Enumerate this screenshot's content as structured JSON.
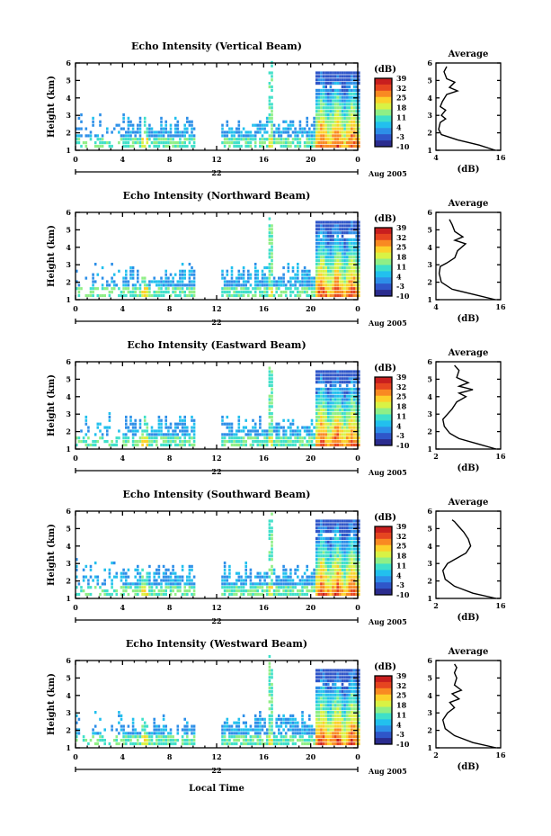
{
  "chart_data": [
    {
      "type": "heatmap",
      "title": "Echo Intensity (Vertical Beam)",
      "ylabel": "Height (km)",
      "y_ticks": [
        "1",
        "2",
        "3",
        "4",
        "5",
        "6"
      ],
      "x_ticks": [
        "0",
        "4",
        "8",
        "12",
        "16",
        "20",
        "0"
      ],
      "date_label": "22",
      "month_label": "Aug 2005",
      "colorbar_unit": "(dB)",
      "colorbar_ticks": [
        "39",
        "32",
        "25",
        "18",
        "11",
        "4",
        "-3",
        "-10"
      ],
      "avg": {
        "title": "Average",
        "xlabel": "(dB)",
        "x_ticks": [
          "4",
          "16"
        ],
        "y_ticks": [
          "1",
          "2",
          "3",
          "4",
          "5",
          "6"
        ],
        "xlim": [
          4,
          16
        ],
        "profile": [
          [
            15,
            1.0
          ],
          [
            12,
            1.3
          ],
          [
            8,
            1.6
          ],
          [
            5,
            1.9
          ],
          [
            4.5,
            2.2
          ],
          [
            4.8,
            2.6
          ],
          [
            5.8,
            2.8
          ],
          [
            5.0,
            3.0
          ],
          [
            5.8,
            3.3
          ],
          [
            4.8,
            3.5
          ],
          [
            5.2,
            3.8
          ],
          [
            6.0,
            4.2
          ],
          [
            8.0,
            4.4
          ],
          [
            6.5,
            4.6
          ],
          [
            7.5,
            4.9
          ],
          [
            6.0,
            5.1
          ],
          [
            5.5,
            5.5
          ],
          [
            6.0,
            5.8
          ]
        ]
      }
    },
    {
      "type": "heatmap",
      "title": "Echo Intensity (Northward Beam)",
      "ylabel": "Height (km)",
      "y_ticks": [
        "1",
        "2",
        "3",
        "4",
        "5",
        "6"
      ],
      "x_ticks": [
        "0",
        "4",
        "8",
        "12",
        "16",
        "20",
        "0"
      ],
      "date_label": "22",
      "month_label": "Aug 2005",
      "colorbar_unit": "(dB)",
      "colorbar_ticks": [
        "39",
        "32",
        "25",
        "18",
        "11",
        "4",
        "-3",
        "-10"
      ],
      "avg": {
        "title": "Average",
        "xlabel": "(dB)",
        "x_ticks": [
          "4",
          "16"
        ],
        "y_ticks": [
          "1",
          "2",
          "3",
          "4",
          "5",
          "6"
        ],
        "xlim": [
          4,
          16
        ],
        "profile": [
          [
            15,
            1.0
          ],
          [
            11,
            1.3
          ],
          [
            7,
            1.6
          ],
          [
            5,
            2.0
          ],
          [
            4.6,
            2.5
          ],
          [
            4.8,
            2.9
          ],
          [
            6.0,
            3.1
          ],
          [
            7.5,
            3.4
          ],
          [
            8.0,
            3.8
          ],
          [
            9.5,
            4.2
          ],
          [
            7.5,
            4.4
          ],
          [
            9.0,
            4.6
          ],
          [
            7.5,
            4.9
          ],
          [
            7.0,
            5.3
          ],
          [
            6.5,
            5.6
          ]
        ]
      }
    },
    {
      "type": "heatmap",
      "title": "Echo Intensity (Eastward Beam)",
      "ylabel": "Height (km)",
      "y_ticks": [
        "1",
        "2",
        "3",
        "4",
        "5",
        "6"
      ],
      "x_ticks": [
        "0",
        "4",
        "8",
        "12",
        "16",
        "20",
        "0"
      ],
      "date_label": "22",
      "month_label": "Aug 2005",
      "colorbar_unit": "(dB)",
      "colorbar_ticks": [
        "39",
        "32",
        "25",
        "18",
        "11",
        "4",
        "-3",
        "-10"
      ],
      "avg": {
        "title": "Average",
        "xlabel": "(dB)",
        "x_ticks": [
          "2",
          "16"
        ],
        "y_ticks": [
          "1",
          "2",
          "3",
          "4",
          "5",
          "6"
        ],
        "xlim": [
          2,
          16
        ],
        "profile": [
          [
            15,
            1.0
          ],
          [
            11,
            1.3
          ],
          [
            7,
            1.6
          ],
          [
            5,
            1.9
          ],
          [
            3.8,
            2.3
          ],
          [
            3.5,
            2.7
          ],
          [
            4.5,
            3.0
          ],
          [
            5.5,
            3.3
          ],
          [
            6.5,
            3.7
          ],
          [
            8.5,
            4.0
          ],
          [
            7.0,
            4.2
          ],
          [
            10,
            4.4
          ],
          [
            7.0,
            4.6
          ],
          [
            9.0,
            4.8
          ],
          [
            6.5,
            5.1
          ],
          [
            7.0,
            5.5
          ],
          [
            6.0,
            5.8
          ]
        ]
      }
    },
    {
      "type": "heatmap",
      "title": "Echo Intensity (Southward Beam)",
      "ylabel": "Height (km)",
      "y_ticks": [
        "1",
        "2",
        "3",
        "4",
        "5",
        "6"
      ],
      "x_ticks": [
        "0",
        "4",
        "8",
        "12",
        "16",
        "20",
        "0"
      ],
      "date_label": "22",
      "month_label": "Aug 2005",
      "colorbar_unit": "(dB)",
      "colorbar_ticks": [
        "39",
        "32",
        "25",
        "18",
        "11",
        "4",
        "-3",
        "-10"
      ],
      "avg": {
        "title": "Average",
        "xlabel": "(dB)",
        "x_ticks": [
          "2",
          "16"
        ],
        "y_ticks": [
          "1",
          "2",
          "3",
          "4",
          "5",
          "6"
        ],
        "xlim": [
          2,
          16
        ],
        "profile": [
          [
            15,
            1.0
          ],
          [
            10,
            1.3
          ],
          [
            6,
            1.7
          ],
          [
            4,
            2.1
          ],
          [
            3.5,
            2.6
          ],
          [
            4.5,
            3.0
          ],
          [
            6.5,
            3.3
          ],
          [
            8.5,
            3.6
          ],
          [
            9.5,
            4.0
          ],
          [
            9.0,
            4.4
          ],
          [
            8.0,
            4.8
          ],
          [
            7.0,
            5.1
          ],
          [
            6.0,
            5.4
          ],
          [
            5.5,
            5.5
          ]
        ]
      }
    },
    {
      "type": "heatmap",
      "title": "Echo Intensity (Westward Beam)",
      "ylabel": "Height (km)",
      "y_ticks": [
        "1",
        "2",
        "3",
        "4",
        "5",
        "6"
      ],
      "x_ticks": [
        "0",
        "4",
        "8",
        "12",
        "16",
        "20",
        "0"
      ],
      "date_label": "22",
      "month_label": "Aug 2005",
      "colorbar_unit": "(dB)",
      "colorbar_ticks": [
        "39",
        "32",
        "25",
        "18",
        "11",
        "4",
        "-3",
        "-10"
      ],
      "avg": {
        "title": "Average",
        "xlabel": "(dB)",
        "x_ticks": [
          "2",
          "16"
        ],
        "y_ticks": [
          "1",
          "2",
          "3",
          "4",
          "5",
          "6"
        ],
        "xlim": [
          2,
          16
        ],
        "profile": [
          [
            15,
            1.0
          ],
          [
            10,
            1.3
          ],
          [
            6,
            1.7
          ],
          [
            4,
            2.1
          ],
          [
            3.5,
            2.6
          ],
          [
            4.5,
            3.0
          ],
          [
            6.0,
            3.3
          ],
          [
            5.0,
            3.6
          ],
          [
            7.0,
            3.8
          ],
          [
            5.5,
            4.1
          ],
          [
            7.5,
            4.3
          ],
          [
            6.0,
            4.6
          ],
          [
            6.5,
            5.0
          ],
          [
            6.0,
            5.3
          ],
          [
            6.5,
            5.6
          ],
          [
            6.0,
            5.8
          ]
        ]
      }
    }
  ],
  "colormap": [
    "#2b2c8f",
    "#2f56c9",
    "#2d8fe8",
    "#22c0ee",
    "#3fe0c9",
    "#8fef86",
    "#d9f245",
    "#fcd12a",
    "#f98a22",
    "#e64520",
    "#c81f1f"
  ],
  "footer": {
    "xlabel": "Local Time"
  }
}
